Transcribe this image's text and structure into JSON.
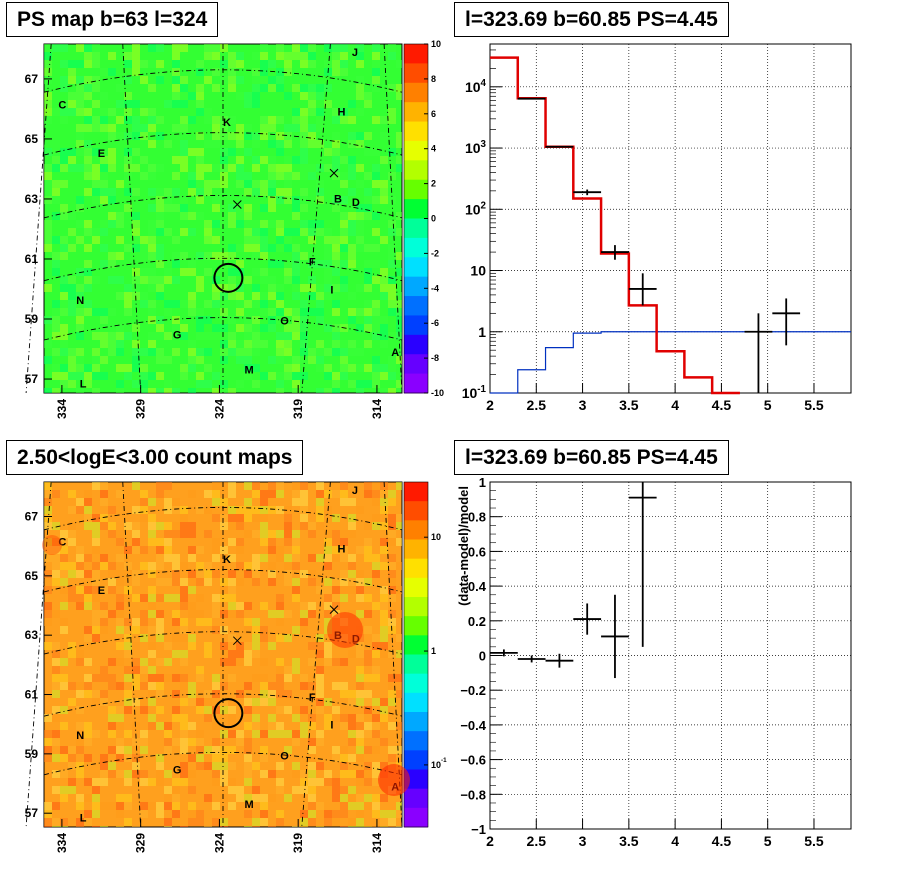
{
  "titles": {
    "ps_map": "PS map b=63 l=324",
    "spectrum": "l=323.69 b=60.85 PS=4.45",
    "count_map": "2.50<logE<3.00 count maps",
    "residual": "l=323.69 b=60.85 PS=4.45"
  },
  "chart_data": [
    {
      "type": "heatmap",
      "title": "PS map b=63 l=324",
      "xlabel": "",
      "ylabel": "",
      "x_ticks": [
        "334",
        "329",
        "324",
        "319",
        "314"
      ],
      "y_ticks": [
        "67",
        "65",
        "63",
        "61",
        "59",
        "57"
      ],
      "colorbar": {
        "min": -10,
        "max": 10,
        "ticks": [
          "10",
          "8",
          "6",
          "4",
          "2",
          "0",
          "-2",
          "-4",
          "-6",
          "-8",
          "-10"
        ]
      },
      "dominant_value": "about 0 to 2 (green)",
      "source_labels": [
        "J",
        "C",
        "H",
        "K",
        "E",
        "B",
        "D",
        "F",
        "I",
        "N",
        "O",
        "G",
        "A",
        "M",
        "L"
      ],
      "marked_position": {
        "l": 323.69,
        "b": 60.85,
        "marker": "circle"
      }
    },
    {
      "type": "line",
      "title": "l=323.69 b=60.85 PS=4.45",
      "xlabel": "",
      "ylabel": "",
      "xlim": [
        2,
        5.9
      ],
      "ylim": [
        0.1,
        50000
      ],
      "y_scale": "log",
      "x_ticks": [
        "2",
        "2.5",
        "3",
        "3.5",
        "4",
        "4.5",
        "5",
        "5.5"
      ],
      "y_ticks": [
        "10^-1",
        "1",
        "10",
        "10^2",
        "10^3",
        "10^4"
      ],
      "grid": true,
      "series": [
        {
          "style": "red step",
          "bins": [
            [
              2.0,
              2.3,
              30000
            ],
            [
              2.3,
              2.6,
              6500
            ],
            [
              2.6,
              2.9,
              1050
            ],
            [
              2.9,
              3.2,
              150
            ],
            [
              3.2,
              3.5,
              19
            ],
            [
              3.5,
              3.8,
              2.7
            ],
            [
              3.8,
              4.1,
              0.48
            ],
            [
              4.1,
              4.4,
              0.18
            ],
            [
              4.4,
              4.7,
              0.08
            ]
          ]
        },
        {
          "style": "blue step",
          "bins": [
            [
              2.0,
              2.3,
              0.1
            ],
            [
              2.3,
              2.6,
              0.24
            ],
            [
              2.6,
              2.9,
              0.55
            ],
            [
              2.9,
              3.2,
              0.95
            ],
            [
              3.2,
              5.9,
              1.0
            ]
          ]
        },
        {
          "style": "black data points",
          "points": [
            {
              "x": 2.45,
              "y": 6400,
              "xerr": 0.15
            },
            {
              "x": 2.75,
              "y": 1050,
              "xerr": 0.15
            },
            {
              "x": 3.05,
              "y": 190,
              "xerr": 0.15,
              "ylo": 170,
              "yhi": 210
            },
            {
              "x": 3.35,
              "y": 20,
              "xerr": 0.15,
              "ylo": 15,
              "yhi": 26
            },
            {
              "x": 3.65,
              "y": 5,
              "xerr": 0.15,
              "ylo": 2.7,
              "yhi": 9
            },
            {
              "x": 4.9,
              "y": 1,
              "xerr": 0.15,
              "ylo": 0.1,
              "yhi": 2
            },
            {
              "x": 5.2,
              "y": 2,
              "xerr": 0.15,
              "ylo": 0.6,
              "yhi": 3.5
            }
          ]
        }
      ]
    },
    {
      "type": "heatmap",
      "title": "2.50<logE<3.00 count maps",
      "xlabel": "",
      "ylabel": "",
      "x_ticks": [
        "334",
        "329",
        "324",
        "319",
        "314"
      ],
      "y_ticks": [
        "67",
        "65",
        "63",
        "61",
        "59",
        "57"
      ],
      "colorbar": {
        "scale": "log",
        "ticks": [
          "10",
          "1",
          "10^-1"
        ]
      },
      "dominant_value": "about 2 to 5 (orange)",
      "source_labels": [
        "J",
        "C",
        "H",
        "K",
        "E",
        "B",
        "D",
        "F",
        "I",
        "N",
        "O",
        "G",
        "A",
        "M",
        "L"
      ],
      "marked_position": {
        "l": 323.69,
        "b": 60.85,
        "marker": "circle"
      }
    },
    {
      "type": "scatter",
      "title": "l=323.69 b=60.85 PS=4.45",
      "xlabel": "",
      "ylabel": "(data-model)/model",
      "xlim": [
        2,
        5.9
      ],
      "ylim": [
        -1,
        1
      ],
      "x_ticks": [
        "2",
        "2.5",
        "3",
        "3.5",
        "4",
        "4.5",
        "5",
        "5.5"
      ],
      "y_ticks": [
        "1",
        "0.8",
        "0.6",
        "0.4",
        "0.2",
        "0",
        "-0.2",
        "-0.4",
        "-0.6",
        "-0.8",
        "-1"
      ],
      "grid": true,
      "points": [
        {
          "x": 2.15,
          "y": 0.015,
          "xerr": 0.15,
          "yerr": 0.02
        },
        {
          "x": 2.45,
          "y": -0.02,
          "xerr": 0.15,
          "yerr": 0.02
        },
        {
          "x": 2.75,
          "y": -0.03,
          "xerr": 0.15,
          "yerr": 0.04
        },
        {
          "x": 3.05,
          "y": 0.21,
          "xerr": 0.15,
          "yerr": 0.09
        },
        {
          "x": 3.35,
          "y": 0.11,
          "xerr": 0.15,
          "yerr": 0.24
        },
        {
          "x": 3.65,
          "y": 0.91,
          "xerr": 0.15,
          "yerr": 0.86
        }
      ]
    }
  ]
}
